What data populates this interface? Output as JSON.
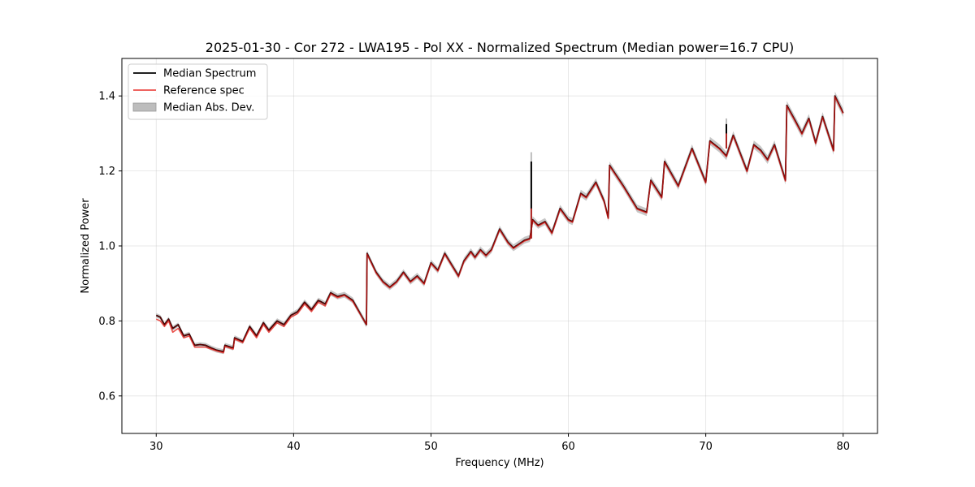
{
  "chart_data": {
    "type": "line",
    "title": "2025-01-30 - Cor 272 - LWA195 - Pol XX - Normalized Spectrum (Median power=16.7 CPU)",
    "xlabel": "Frequency (MHz)",
    "ylabel": "Normalized Power",
    "xlim": [
      27.5,
      82.5
    ],
    "ylim": [
      0.5,
      1.5
    ],
    "xticks": [
      30,
      40,
      50,
      60,
      70,
      80
    ],
    "yticks": [
      0.6,
      0.8,
      1.0,
      1.2,
      1.4
    ],
    "xtick_labels": [
      "30",
      "40",
      "50",
      "60",
      "70",
      "80"
    ],
    "ytick_labels": [
      "0.6",
      "0.8",
      "1.0",
      "1.2",
      "1.4"
    ],
    "grid": true,
    "legend_position": "top-left",
    "legend": [
      "Median Spectrum",
      "Reference spec",
      "Median Abs. Dev."
    ],
    "colors": {
      "median": "#000000",
      "reference": "#e8312c",
      "overlap": "#8b0000",
      "mad_band": "#bdbdbd"
    },
    "spikes": [
      {
        "x": 57.3,
        "median_top": 1.225,
        "band_top": 1.25,
        "reference_top": 1.1
      },
      {
        "x": 71.5,
        "median_top": 1.325,
        "band_top": 1.34,
        "reference_top": 1.3
      }
    ],
    "series": [
      {
        "name": "Median Spectrum",
        "x": [
          30.0,
          30.3,
          30.6,
          30.9,
          31.2,
          31.6,
          32.0,
          32.4,
          32.8,
          33.2,
          33.6,
          34.0,
          34.4,
          34.9,
          35.0,
          35.6,
          35.7,
          36.3,
          36.8,
          37.3,
          37.8,
          38.2,
          38.8,
          39.3,
          39.8,
          40.3,
          40.8,
          41.3,
          41.8,
          42.3,
          42.7,
          43.2,
          43.7,
          44.3,
          45.3,
          45.35,
          46.0,
          46.5,
          47.0,
          47.5,
          48.0,
          48.5,
          49.0,
          49.5,
          50.0,
          50.5,
          51.0,
          51.5,
          52.0,
          52.4,
          52.9,
          53.2,
          53.6,
          54.0,
          54.4,
          55.0,
          55.6,
          56.0,
          56.8,
          57.2,
          57.4,
          57.8,
          58.3,
          58.8,
          59.4,
          60.0,
          60.3,
          60.9,
          61.3,
          62.0,
          62.6,
          62.9,
          63.0,
          64.0,
          65.0,
          65.7,
          66.0,
          66.8,
          67.0,
          68.0,
          69.0,
          70.0,
          70.3,
          71.0,
          71.5,
          72.0,
          73.0,
          73.5,
          74.0,
          74.5,
          75.0,
          75.8,
          75.9,
          76.5,
          77.0,
          77.5,
          78.0,
          78.5,
          79.3,
          79.4,
          80.0
        ],
        "values": [
          0.815,
          0.81,
          0.79,
          0.805,
          0.78,
          0.79,
          0.76,
          0.765,
          0.735,
          0.737,
          0.735,
          0.728,
          0.722,
          0.718,
          0.735,
          0.728,
          0.755,
          0.745,
          0.785,
          0.76,
          0.795,
          0.775,
          0.8,
          0.79,
          0.815,
          0.825,
          0.85,
          0.83,
          0.855,
          0.845,
          0.875,
          0.865,
          0.87,
          0.855,
          0.79,
          0.98,
          0.93,
          0.905,
          0.89,
          0.905,
          0.93,
          0.905,
          0.92,
          0.9,
          0.955,
          0.935,
          0.98,
          0.95,
          0.92,
          0.96,
          0.985,
          0.97,
          0.99,
          0.975,
          0.99,
          1.045,
          1.01,
          0.995,
          1.015,
          1.02,
          1.07,
          1.055,
          1.065,
          1.035,
          1.1,
          1.07,
          1.065,
          1.14,
          1.13,
          1.17,
          1.12,
          1.075,
          1.215,
          1.16,
          1.1,
          1.09,
          1.175,
          1.13,
          1.225,
          1.16,
          1.26,
          1.17,
          1.28,
          1.26,
          1.24,
          1.295,
          1.2,
          1.27,
          1.255,
          1.23,
          1.27,
          1.175,
          1.375,
          1.335,
          1.3,
          1.34,
          1.275,
          1.345,
          1.255,
          1.4,
          1.355
        ]
      },
      {
        "name": "Reference spec",
        "x": [
          30.0,
          30.3,
          30.6,
          30.9,
          31.2,
          31.6,
          32.0,
          32.4,
          32.8,
          33.2,
          33.6,
          34.0,
          34.4,
          34.9,
          35.0,
          35.6,
          35.7,
          36.3,
          36.8,
          37.3,
          37.8,
          38.2,
          38.8,
          39.3,
          39.8,
          40.3,
          40.8,
          41.3,
          41.8,
          42.3,
          42.7,
          43.2,
          43.7,
          44.3,
          45.3,
          45.35,
          46.0,
          46.5,
          47.0,
          47.5,
          48.0,
          48.5,
          49.0,
          49.5,
          50.0,
          50.5,
          51.0,
          51.5,
          52.0,
          52.4,
          52.9,
          53.2,
          53.6,
          54.0,
          54.4,
          55.0,
          55.6,
          56.0,
          56.8,
          57.2,
          57.4,
          57.8,
          58.3,
          58.8,
          59.4,
          60.0,
          60.3,
          60.9,
          61.3,
          62.0,
          62.6,
          62.9,
          63.0,
          64.0,
          65.0,
          65.7,
          66.0,
          66.8,
          67.0,
          68.0,
          69.0,
          70.0,
          70.3,
          71.0,
          71.5,
          72.0,
          73.0,
          73.5,
          74.0,
          74.5,
          75.0,
          75.8,
          75.9,
          76.5,
          77.0,
          77.5,
          78.0,
          78.5,
          79.3,
          79.4,
          80.0
        ],
        "values": [
          0.805,
          0.8,
          0.785,
          0.8,
          0.77,
          0.78,
          0.755,
          0.76,
          0.73,
          0.73,
          0.73,
          0.725,
          0.72,
          0.715,
          0.732,
          0.725,
          0.752,
          0.742,
          0.78,
          0.755,
          0.79,
          0.77,
          0.795,
          0.785,
          0.81,
          0.82,
          0.845,
          0.825,
          0.85,
          0.84,
          0.872,
          0.862,
          0.868,
          0.852,
          0.79,
          0.978,
          0.928,
          0.903,
          0.888,
          0.903,
          0.928,
          0.903,
          0.918,
          0.898,
          0.953,
          0.933,
          0.978,
          0.948,
          0.918,
          0.958,
          0.983,
          0.968,
          0.988,
          0.973,
          0.988,
          1.043,
          1.008,
          0.993,
          1.013,
          1.018,
          1.068,
          1.053,
          1.063,
          1.033,
          1.098,
          1.068,
          1.063,
          1.138,
          1.128,
          1.168,
          1.118,
          1.073,
          1.213,
          1.158,
          1.098,
          1.088,
          1.173,
          1.128,
          1.223,
          1.158,
          1.258,
          1.168,
          1.278,
          1.258,
          1.238,
          1.293,
          1.198,
          1.268,
          1.253,
          1.228,
          1.268,
          1.173,
          1.373,
          1.333,
          1.298,
          1.338,
          1.273,
          1.343,
          1.253,
          1.398,
          1.353
        ]
      }
    ]
  }
}
